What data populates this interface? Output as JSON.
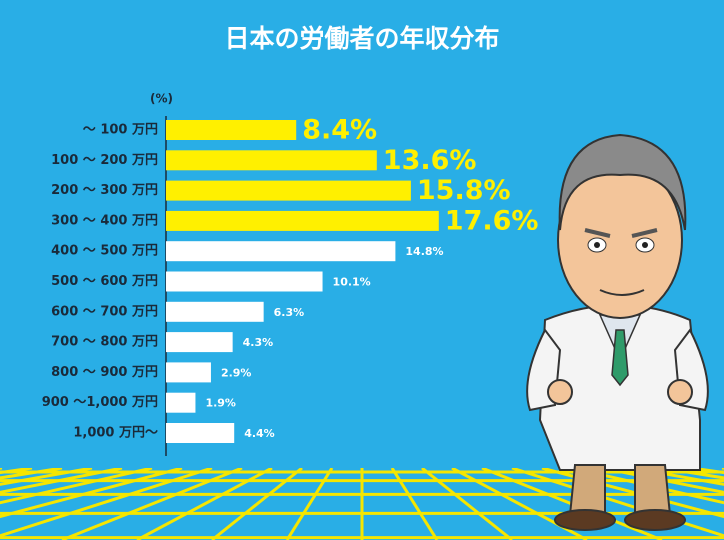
{
  "chart_data": {
    "type": "bar",
    "orientation": "horizontal",
    "title": "日本の労働者の年収分布",
    "unit_label": "(%)",
    "categories": [
      "～ 100 万円",
      "100 ～ 200 万円",
      "200 ～ 300 万円",
      "300 ～ 400 万円",
      "400 ～ 500 万円",
      "500 ～ 600 万円",
      "600 ～ 700 万円",
      "700 ～ 800 万円",
      "800 ～ 900 万円",
      "900 ～1,000 万円",
      "1,000 万円～"
    ],
    "values": [
      8.4,
      13.6,
      15.8,
      17.6,
      14.8,
      10.1,
      6.3,
      4.3,
      2.9,
      1.9,
      4.4
    ],
    "value_labels": [
      "8.4%",
      "13.6%",
      "15.8%",
      "17.6%",
      "14.8%",
      "10.1%",
      "6.3%",
      "4.3%",
      "2.9%",
      "1.9%",
      "4.4%"
    ],
    "colors": [
      "#fff000",
      "#fff000",
      "#fff000",
      "#fff000",
      "#ffffff",
      "#ffffff",
      "#ffffff",
      "#ffffff",
      "#ffffff",
      "#ffffff",
      "#ffffff"
    ]
  }
}
